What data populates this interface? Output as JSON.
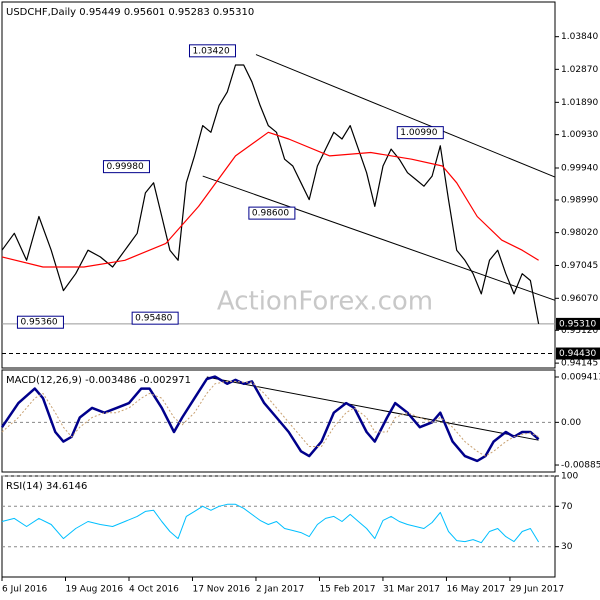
{
  "chart_data": [
    {
      "type": "line",
      "title": "USDCHF,Daily 0.95449 0.95601 0.95283 0.95310",
      "watermark": "ActionForex.com",
      "xlim": [
        0,
        270
      ],
      "xticks": [
        {
          "value": 0,
          "label": "6 Jul 2016"
        },
        {
          "value": 31,
          "label": "19 Aug 2016"
        },
        {
          "value": 62,
          "label": "4 Oct 2016"
        },
        {
          "value": 93,
          "label": "17 Nov 2016"
        },
        {
          "value": 124,
          "label": "2 Jan 2017"
        },
        {
          "value": 155,
          "label": "15 Feb 2017"
        },
        {
          "value": 186,
          "label": "31 Mar 2017"
        },
        {
          "value": 217,
          "label": "16 May 2017"
        },
        {
          "value": 248,
          "label": "29 Jun 2017"
        }
      ],
      "ylim": [
        0.94,
        1.0487
      ],
      "yticks": [
        {
          "value": 1.0384,
          "label": "1.03840"
        },
        {
          "value": 1.0287,
          "label": "1.02870"
        },
        {
          "value": 1.0189,
          "label": "1.01890"
        },
        {
          "value": 1.0093,
          "label": "1.00930"
        },
        {
          "value": 0.9994,
          "label": "0.99940"
        },
        {
          "value": 0.9899,
          "label": "0.98990"
        },
        {
          "value": 0.9802,
          "label": "0.98020"
        },
        {
          "value": 0.97045,
          "label": "0.97045"
        },
        {
          "value": 0.9607,
          "label": "0.96070"
        },
        {
          "value": 0.9512,
          "label": "0.95120"
        },
        {
          "value": 0.94145,
          "label": "0.94145"
        }
      ],
      "series": [
        {
          "color": "#000000",
          "x": [
            0,
            6,
            12,
            18,
            24,
            30,
            36,
            42,
            48,
            54,
            60,
            66,
            70,
            74,
            78,
            82,
            86,
            90,
            94,
            98,
            102,
            106,
            110,
            114,
            118,
            122,
            126,
            130,
            134,
            138,
            142,
            146,
            150,
            154,
            158,
            162,
            166,
            170,
            174,
            178,
            182,
            186,
            190,
            194,
            198,
            202,
            206,
            210,
            214,
            218,
            222,
            226,
            230,
            234,
            238,
            242,
            246,
            250,
            254,
            258,
            262
          ],
          "values": [
            0.975,
            0.98,
            0.972,
            0.985,
            0.975,
            0.963,
            0.968,
            0.975,
            0.973,
            0.97,
            0.975,
            0.98,
            0.992,
            0.995,
            0.985,
            0.975,
            0.972,
            0.995,
            1.003,
            1.012,
            1.01,
            1.018,
            1.022,
            1.03,
            1.03,
            1.025,
            1.018,
            1.012,
            1.01,
            1.002,
            1.0,
            0.995,
            0.99,
            1.0,
            1.005,
            1.01,
            1.008,
            1.012,
            1.005,
            0.998,
            0.988,
            1.0,
            1.005,
            1.002,
            0.998,
            0.996,
            0.994,
            0.997,
            1.006,
            0.99,
            0.975,
            0.972,
            0.968,
            0.962,
            0.972,
            0.975,
            0.968,
            0.962,
            0.968,
            0.966,
            0.9531
          ]
        },
        {
          "color": "#ff0000",
          "x": [
            0,
            20,
            40,
            60,
            80,
            96,
            114,
            130,
            140,
            160,
            180,
            200,
            215,
            222,
            232,
            244,
            254,
            262
          ],
          "values": [
            0.973,
            0.97,
            0.97,
            0.972,
            0.977,
            0.988,
            1.003,
            1.01,
            1.008,
            1.003,
            1.004,
            1.002,
            1.0,
            0.995,
            0.985,
            0.978,
            0.975,
            0.972
          ]
        }
      ],
      "trendlines": [
        {
          "x": [
            124,
            270
          ],
          "values": [
            1.0331,
            0.9967
          ]
        },
        {
          "x": [
            98,
            270
          ],
          "values": [
            0.997,
            0.9601
          ]
        }
      ],
      "annotations": [
        {
          "label": "1.03420",
          "x": 114,
          "value": 1.0342,
          "side": "left"
        },
        {
          "label": "0.99980",
          "x": 72,
          "value": 0.9998,
          "side": "left"
        },
        {
          "label": "0.98600",
          "x": 143,
          "value": 0.986,
          "side": "left"
        },
        {
          "label": "1.00990",
          "x": 193,
          "value": 1.0099,
          "side": "right"
        },
        {
          "label": "0.95360",
          "x": 30,
          "value": 0.9536,
          "side": "left"
        },
        {
          "label": "0.95480",
          "x": 86,
          "value": 0.9548,
          "side": "left"
        }
      ],
      "hlines": [
        {
          "value": 0.9531,
          "label": "0.95310",
          "dashed": false
        },
        {
          "value": 0.9443,
          "label": "0.94430",
          "dashed": true
        }
      ]
    },
    {
      "type": "line",
      "title": "MACD(12,26,9) -0.003486 -0.002971",
      "ylim": [
        -0.0103,
        0.01086
      ],
      "yticks": [
        0.009411,
        {
          "value": 0,
          "label": "0.00"
        },
        -0.008852
      ],
      "zero_line": true,
      "x": [
        0,
        8,
        16,
        20,
        26,
        30,
        34,
        38,
        44,
        50,
        56,
        62,
        68,
        72,
        78,
        84,
        88,
        94,
        100,
        104,
        110,
        114,
        118,
        122,
        128,
        134,
        140,
        146,
        150,
        156,
        162,
        168,
        172,
        178,
        182,
        188,
        192,
        198,
        204,
        210,
        214,
        220,
        226,
        232,
        236,
        240,
        246,
        250,
        254,
        258,
        262
      ],
      "series": [
        {
          "color": "#00008b",
          "width": 2.5,
          "dashed": false,
          "values": [
            -0.001,
            0.004,
            0.007,
            0.005,
            -0.002,
            -0.004,
            -0.003,
            0.001,
            0.003,
            0.002,
            0.003,
            0.004,
            0.007,
            0.007,
            0.003,
            -0.002,
            0.001,
            0.005,
            0.009,
            0.0095,
            0.008,
            0.0088,
            0.008,
            0.0085,
            0.004,
            0.001,
            -0.002,
            -0.006,
            -0.007,
            -0.004,
            0.002,
            0.004,
            0.003,
            -0.002,
            -0.004,
            0.001,
            0.004,
            0.002,
            -0.001,
            0,
            0.002,
            -0.004,
            -0.007,
            -0.008,
            -0.007,
            -0.004,
            -0.002,
            -0.003,
            -0.002,
            -0.002,
            -0.003486
          ]
        },
        {
          "color": "#c8a070",
          "width": 1,
          "dashed": true,
          "values": [
            -0.002,
            0.001,
            0.005,
            0.006,
            0.002,
            -0.001,
            -0.003,
            -0.001,
            0.001,
            0.002,
            0.002,
            0.003,
            0.005,
            0.006,
            0.005,
            0.001,
            -0.0005,
            0.002,
            0.006,
            0.008,
            0.0085,
            0.0085,
            0.0083,
            0.0083,
            0.006,
            0.003,
            0,
            -0.003,
            -0.005,
            -0.005,
            -0.001,
            0.002,
            0.003,
            0.001,
            -0.002,
            -0.002,
            0.001,
            0.002,
            0.001,
            0,
            0.001,
            -0.001,
            -0.004,
            -0.006,
            -0.007,
            -0.006,
            -0.004,
            -0.003,
            -0.0025,
            -0.0022,
            -0.002971
          ]
        }
      ],
      "trendlines": [
        {
          "x": [
            100,
            262
          ],
          "values": [
            0.0094,
            -0.0037
          ]
        }
      ]
    },
    {
      "type": "line",
      "title": "RSI(14) 34.6146",
      "ylim": [
        0,
        100
      ],
      "yticks": [
        100,
        70,
        30
      ],
      "grid": true,
      "x": [
        0,
        6,
        12,
        18,
        24,
        30,
        36,
        42,
        48,
        54,
        60,
        66,
        70,
        74,
        78,
        82,
        86,
        90,
        94,
        98,
        102,
        106,
        110,
        114,
        118,
        122,
        126,
        130,
        134,
        138,
        142,
        146,
        150,
        154,
        158,
        162,
        166,
        170,
        174,
        178,
        182,
        186,
        190,
        194,
        198,
        202,
        206,
        210,
        214,
        218,
        222,
        226,
        230,
        234,
        238,
        242,
        246,
        250,
        254,
        258,
        262
      ],
      "series": [
        {
          "color": "#00bfff",
          "width": 1,
          "dashed": false,
          "values": [
            55,
            58,
            50,
            58,
            52,
            38,
            48,
            55,
            52,
            50,
            55,
            60,
            65,
            66,
            55,
            45,
            38,
            60,
            65,
            70,
            66,
            70,
            72,
            72,
            68,
            62,
            56,
            52,
            55,
            48,
            46,
            44,
            40,
            52,
            58,
            60,
            55,
            62,
            55,
            48,
            38,
            56,
            60,
            55,
            52,
            50,
            48,
            54,
            64,
            45,
            36,
            35,
            37,
            34,
            45,
            48,
            40,
            35,
            45,
            48,
            34.6146
          ]
        }
      ]
    }
  ]
}
